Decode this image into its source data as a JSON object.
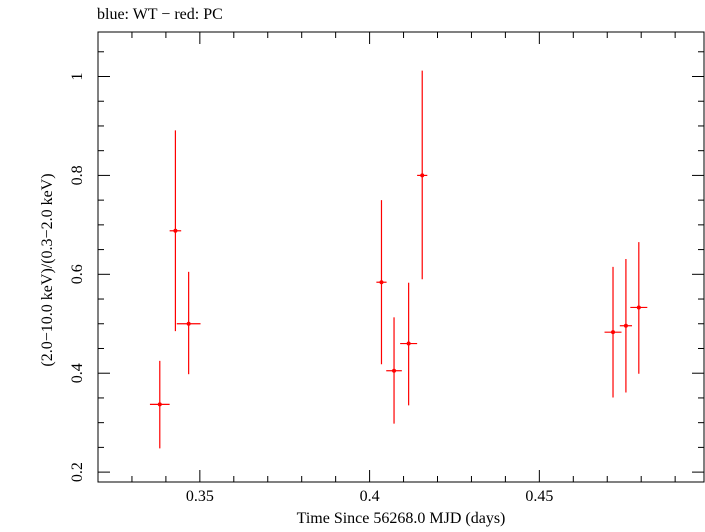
{
  "chart_data": {
    "type": "scatter",
    "title": "blue: WT − red: PC",
    "xlabel": "Time Since 56268.0 MJD (days)",
    "ylabel": "(2.0−10.0 keV)/(0.3−2.0 keV)",
    "xlim": [
      0.32,
      0.4985
    ],
    "ylim": [
      0.18,
      1.09
    ],
    "xticks": [
      0.35,
      0.4,
      0.45
    ],
    "xtick_labels": [
      "0.35",
      "0.4",
      "0.45"
    ],
    "yticks": [
      0.2,
      0.4,
      0.6,
      0.8,
      1.0
    ],
    "ytick_labels": [
      "0.2",
      "0.4",
      "0.6",
      "0.8",
      "1"
    ],
    "grid": false,
    "series": [
      {
        "name": "PC",
        "color": "#ff0000",
        "points": [
          {
            "x": 0.3382,
            "y": 0.337,
            "xerr": 0.0029,
            "ylo": 0.248,
            "yhi": 0.425
          },
          {
            "x": 0.3428,
            "y": 0.688,
            "xerr": 0.0017,
            "ylo": 0.485,
            "yhi": 0.891
          },
          {
            "x": 0.3467,
            "y": 0.5,
            "xerr": 0.0035,
            "ylo": 0.398,
            "yhi": 0.605
          },
          {
            "x": 0.4035,
            "y": 0.584,
            "xerr": 0.0015,
            "ylo": 0.418,
            "yhi": 0.75
          },
          {
            "x": 0.4072,
            "y": 0.405,
            "xerr": 0.0023,
            "ylo": 0.298,
            "yhi": 0.513
          },
          {
            "x": 0.4115,
            "y": 0.46,
            "xerr": 0.0025,
            "ylo": 0.335,
            "yhi": 0.583
          },
          {
            "x": 0.4155,
            "y": 0.8,
            "xerr": 0.0015,
            "ylo": 0.59,
            "yhi": 1.012
          },
          {
            "x": 0.4717,
            "y": 0.483,
            "xerr": 0.0025,
            "ylo": 0.351,
            "yhi": 0.615
          },
          {
            "x": 0.4755,
            "y": 0.496,
            "xerr": 0.0018,
            "ylo": 0.361,
            "yhi": 0.631
          },
          {
            "x": 0.4793,
            "y": 0.533,
            "xerr": 0.0025,
            "ylo": 0.399,
            "yhi": 0.665
          }
        ]
      }
    ]
  }
}
